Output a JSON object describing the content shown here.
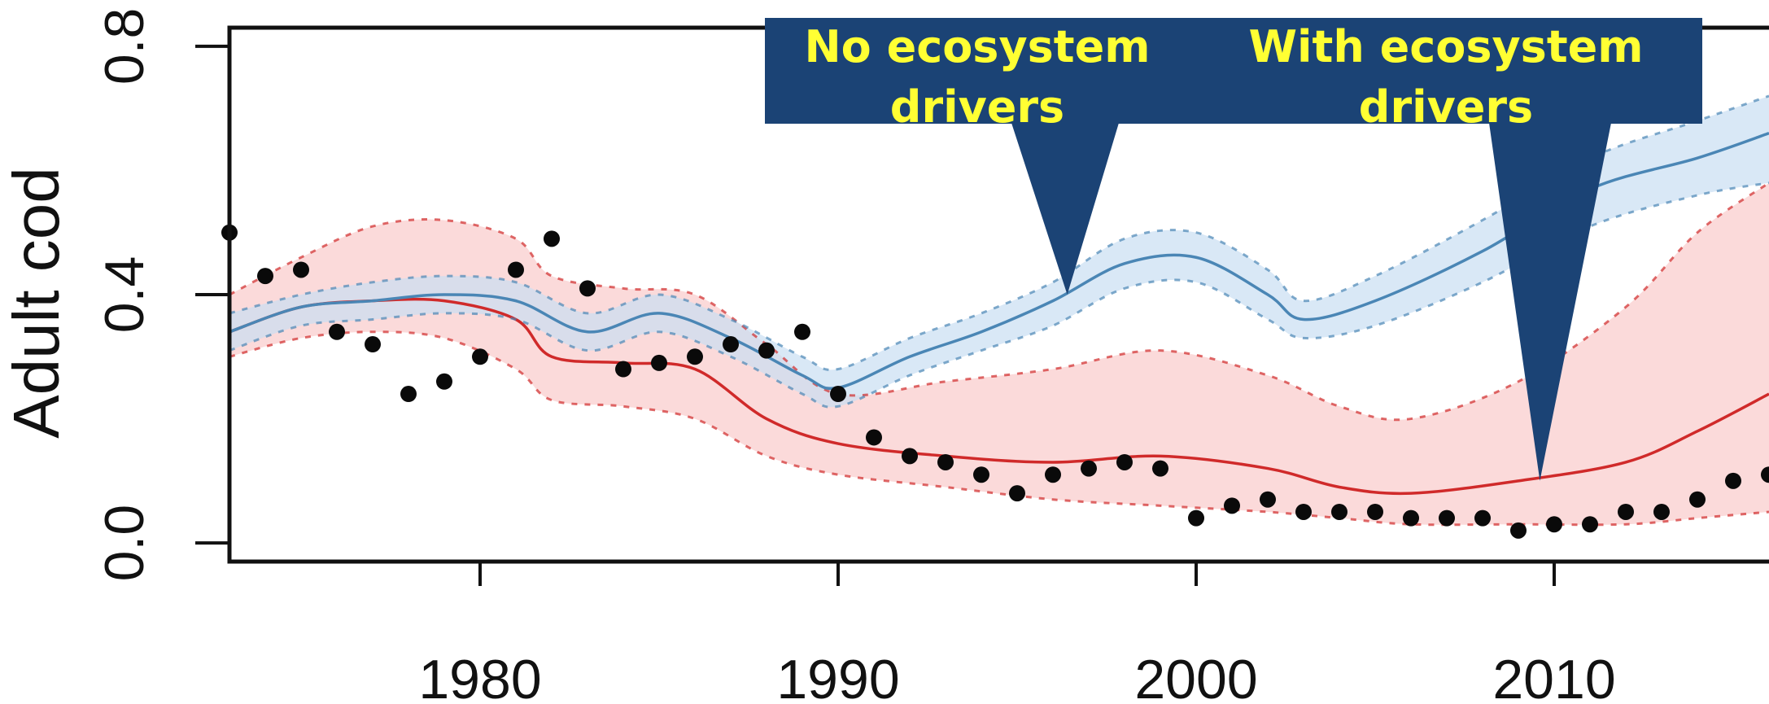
{
  "chart_data": {
    "type": "line",
    "ylabel": "Adult cod",
    "xlim": [
      1973,
      2016
    ],
    "ylim": [
      -0.03,
      0.83
    ],
    "x_ticks": [
      1980,
      1990,
      2000,
      2010
    ],
    "y_ticks": [
      0.0,
      0.4,
      0.8
    ],
    "y_tick_labels": [
      "0.0",
      "0.4",
      "0.8"
    ],
    "grid": false,
    "series": [
      {
        "key": "no_drivers",
        "color": "#4a86b5",
        "band_color": "#c9def2",
        "points": [
          [
            1973,
            0.34,
            0.31,
            0.37
          ],
          [
            1975,
            0.38,
            0.35,
            0.4
          ],
          [
            1977,
            0.39,
            0.36,
            0.42
          ],
          [
            1979,
            0.4,
            0.37,
            0.43
          ],
          [
            1981,
            0.39,
            0.36,
            0.42
          ],
          [
            1983,
            0.34,
            0.31,
            0.37
          ],
          [
            1985,
            0.37,
            0.34,
            0.4
          ],
          [
            1987,
            0.33,
            0.3,
            0.36
          ],
          [
            1989,
            0.27,
            0.24,
            0.3
          ],
          [
            1990,
            0.25,
            0.22,
            0.28
          ],
          [
            1992,
            0.3,
            0.27,
            0.33
          ],
          [
            1994,
            0.34,
            0.31,
            0.37
          ],
          [
            1996,
            0.39,
            0.35,
            0.42
          ],
          [
            1998,
            0.45,
            0.41,
            0.49
          ],
          [
            2000,
            0.46,
            0.42,
            0.5
          ],
          [
            2002,
            0.4,
            0.36,
            0.44
          ],
          [
            2003,
            0.36,
            0.33,
            0.39
          ],
          [
            2005,
            0.39,
            0.35,
            0.43
          ],
          [
            2008,
            0.47,
            0.42,
            0.52
          ],
          [
            2011,
            0.57,
            0.51,
            0.62
          ],
          [
            2014,
            0.62,
            0.56,
            0.68
          ],
          [
            2016,
            0.66,
            0.58,
            0.72
          ]
        ]
      },
      {
        "key": "with_drivers",
        "color": "#d02a2a",
        "band_color": "#fad3d3",
        "points": [
          [
            1973,
            0.34,
            0.3,
            0.4
          ],
          [
            1975,
            0.38,
            0.33,
            0.46
          ],
          [
            1977,
            0.39,
            0.34,
            0.51
          ],
          [
            1979,
            0.39,
            0.33,
            0.52
          ],
          [
            1981,
            0.36,
            0.28,
            0.49
          ],
          [
            1982,
            0.3,
            0.23,
            0.43
          ],
          [
            1984,
            0.29,
            0.22,
            0.41
          ],
          [
            1986,
            0.28,
            0.2,
            0.4
          ],
          [
            1988,
            0.2,
            0.14,
            0.32
          ],
          [
            1990,
            0.16,
            0.11,
            0.24
          ],
          [
            1993,
            0.14,
            0.09,
            0.26
          ],
          [
            1996,
            0.13,
            0.07,
            0.28
          ],
          [
            1999,
            0.14,
            0.06,
            0.31
          ],
          [
            2002,
            0.12,
            0.05,
            0.27
          ],
          [
            2004,
            0.09,
            0.04,
            0.22
          ],
          [
            2006,
            0.08,
            0.03,
            0.2
          ],
          [
            2009,
            0.1,
            0.03,
            0.26
          ],
          [
            2012,
            0.13,
            0.03,
            0.38
          ],
          [
            2014,
            0.18,
            0.04,
            0.5
          ],
          [
            2016,
            0.24,
            0.05,
            0.58
          ]
        ]
      }
    ],
    "observations": [
      [
        1973,
        0.5
      ],
      [
        1974,
        0.43
      ],
      [
        1975,
        0.44
      ],
      [
        1976,
        0.34
      ],
      [
        1977,
        0.32
      ],
      [
        1978,
        0.24
      ],
      [
        1979,
        0.26
      ],
      [
        1980,
        0.3
      ],
      [
        1981,
        0.44
      ],
      [
        1982,
        0.49
      ],
      [
        1983,
        0.41
      ],
      [
        1984,
        0.28
      ],
      [
        1985,
        0.29
      ],
      [
        1986,
        0.3
      ],
      [
        1987,
        0.32
      ],
      [
        1988,
        0.31
      ],
      [
        1989,
        0.34
      ],
      [
        1990,
        0.24
      ],
      [
        1991,
        0.17
      ],
      [
        1992,
        0.14
      ],
      [
        1993,
        0.13
      ],
      [
        1994,
        0.11
      ],
      [
        1995,
        0.08
      ],
      [
        1996,
        0.11
      ],
      [
        1997,
        0.12
      ],
      [
        1998,
        0.13
      ],
      [
        1999,
        0.12
      ],
      [
        2000,
        0.04
      ],
      [
        2001,
        0.06
      ],
      [
        2002,
        0.07
      ],
      [
        2003,
        0.05
      ],
      [
        2004,
        0.05
      ],
      [
        2005,
        0.05
      ],
      [
        2006,
        0.04
      ],
      [
        2007,
        0.04
      ],
      [
        2008,
        0.04
      ],
      [
        2009,
        0.02
      ],
      [
        2010,
        0.03
      ],
      [
        2011,
        0.03
      ],
      [
        2012,
        0.05
      ],
      [
        2013,
        0.05
      ],
      [
        2014,
        0.07
      ],
      [
        2015,
        0.1
      ],
      [
        2016,
        0.11
      ]
    ],
    "annotations": [
      {
        "key": "callout_no_drivers",
        "lines": [
          "No ecosystem",
          "drivers"
        ],
        "pointer": [
          1996.4,
          0.4
        ]
      },
      {
        "key": "callout_with_drivers",
        "lines": [
          "With ecosystem",
          "drivers"
        ],
        "pointer": [
          2009.6,
          0.1
        ]
      }
    ],
    "callout_colors": {
      "fill": "#1b4375",
      "text": "#ffff33"
    }
  }
}
